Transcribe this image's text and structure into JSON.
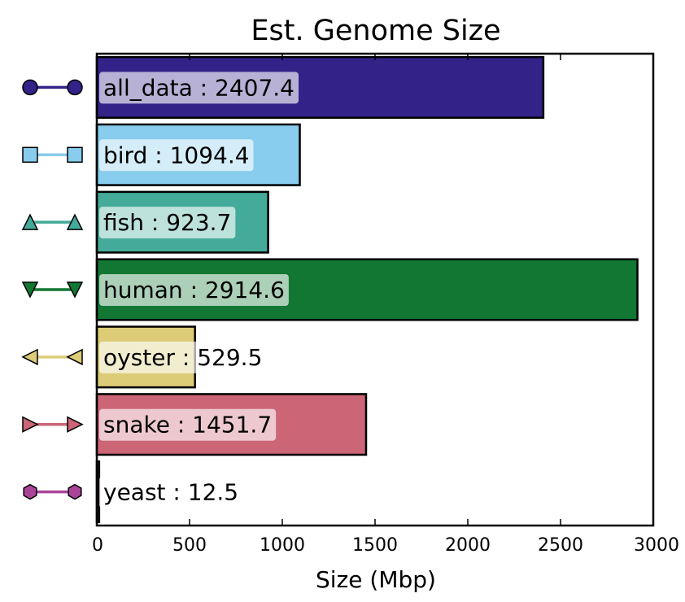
{
  "chart_data": {
    "type": "bar",
    "orientation": "horizontal",
    "title": "Est. Genome Size",
    "xlabel": "Size (Mbp)",
    "ylabel": "",
    "xlim": [
      0,
      3000
    ],
    "xticks": [
      "0",
      "500",
      "1000",
      "1500",
      "2000",
      "2500",
      "3000"
    ],
    "grid": false,
    "categories": [
      "all_data",
      "bird",
      "fish",
      "human",
      "oyster",
      "snake",
      "yeast"
    ],
    "values": [
      2407.4,
      1094.4,
      923.7,
      2914.6,
      529.5,
      1451.7,
      12.5
    ],
    "labels": [
      "all_data : 2407.4",
      "bird : 1094.4",
      "fish : 923.7",
      "human : 2914.6",
      "oyster : 529.5",
      "snake : 1451.7",
      "yeast : 12.5"
    ],
    "colors": [
      "#332288",
      "#88CCEE",
      "#44AA99",
      "#117733",
      "#DDCC77",
      "#CC6677",
      "#AA4499"
    ],
    "legend_markers": [
      "circle",
      "square",
      "triangle-up",
      "triangle-down",
      "triangle-left",
      "triangle-right",
      "hexagon"
    ],
    "legend_placement": "left"
  }
}
